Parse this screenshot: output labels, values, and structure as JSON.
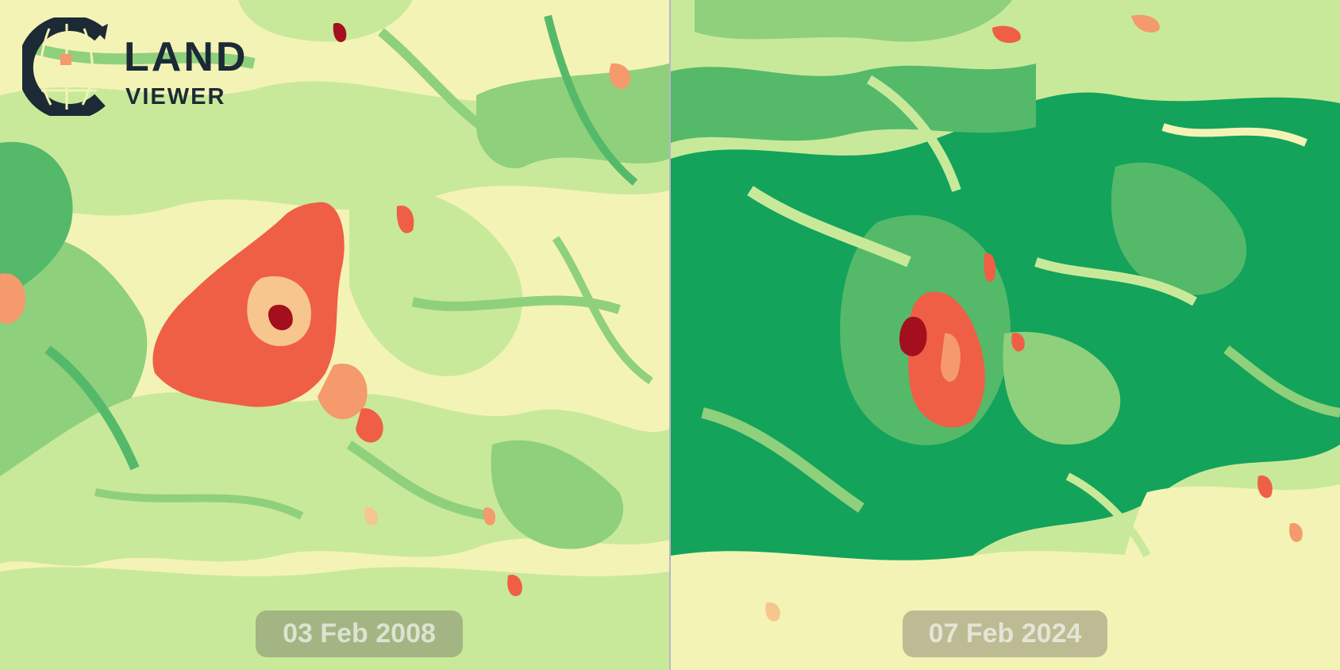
{
  "comparison": {
    "left": {
      "date": "03 Feb 2008"
    },
    "right": {
      "date": "07 Feb 2024"
    }
  },
  "logo": {
    "word1": "LAND",
    "word2": "VIEWER"
  },
  "palette": {
    "pale": "#f7f4b4",
    "light_green": "#c9e99a",
    "mid_green": "#8fd07c",
    "green": "#55b96a",
    "dark_green": "#13a35a",
    "peach": "#f7c58e",
    "orange": "#f49a6c",
    "red": "#ef5f45",
    "dark_red": "#a30f1f"
  },
  "icons": {
    "logo_mark": "globe-grid-icon"
  }
}
